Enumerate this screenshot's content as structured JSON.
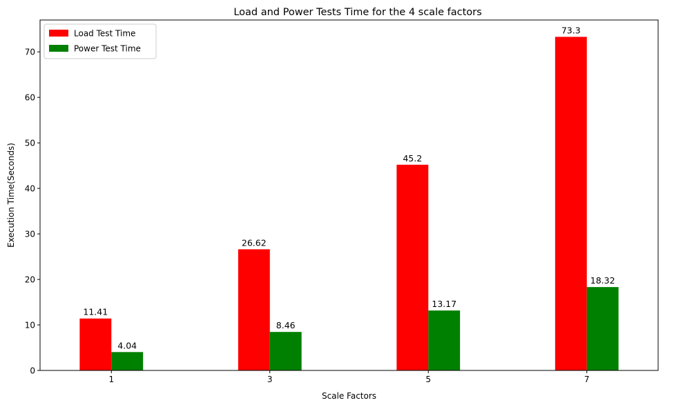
{
  "chart_data": {
    "type": "bar",
    "title": "Load and Power Tests Time for the 4 scale factors",
    "xlabel": "Scale Factors",
    "ylabel": "Execution Time(Seconds)",
    "categories": [
      "1",
      "3",
      "5",
      "7"
    ],
    "series": [
      {
        "name": "Load Test Time",
        "color": "#ff0000",
        "values": [
          11.41,
          26.62,
          45.2,
          73.3
        ],
        "labels": [
          "11.41",
          "26.62",
          "45.2",
          "73.3"
        ]
      },
      {
        "name": "Power Test Time",
        "color": "#008000",
        "values": [
          4.04,
          8.46,
          13.17,
          18.32
        ],
        "labels": [
          "4.04",
          "8.46",
          "13.17",
          "18.32"
        ]
      }
    ],
    "ylim": [
      0,
      77
    ],
    "yticks": [
      "0",
      "10",
      "20",
      "30",
      "40",
      "50",
      "60",
      "70"
    ],
    "grid": false,
    "legend": "top-left"
  }
}
